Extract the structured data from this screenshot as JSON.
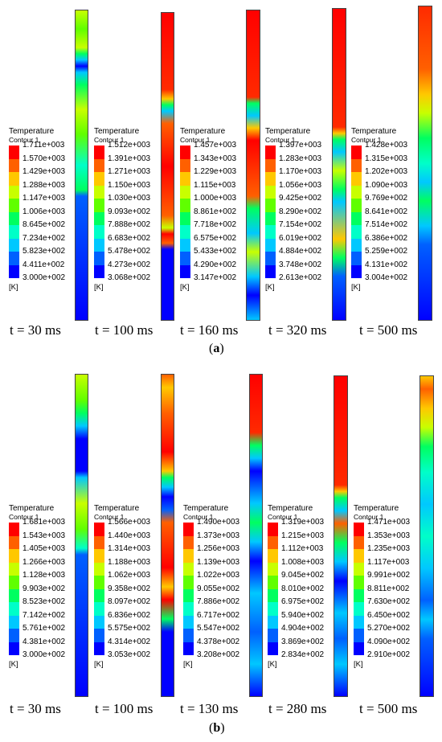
{
  "legend_title": "Temperature",
  "legend_subtitle": "Contour 1",
  "unit": "[K]",
  "colors": [
    "#0000ff",
    "#0060ff",
    "#00c8ff",
    "#00ffc8",
    "#00ff60",
    "#60ff00",
    "#c8ff00",
    "#ffc800",
    "#ff6000",
    "#ff0000"
  ],
  "panels": [
    {
      "label": "a",
      "caption_open": "(",
      "caption_close": ")",
      "columns": [
        {
          "time": "t = 30 ms",
          "values": [
            "1.711e+003",
            "1.570e+003",
            "1.429e+003",
            "1.288e+003",
            "1.147e+003",
            "1.006e+003",
            "8.645e+002",
            "7.234e+002",
            "5.823e+002",
            "4.411e+002",
            "3.000e+002"
          ]
        },
        {
          "time": "t = 100 ms",
          "values": [
            "1.512e+003",
            "1.391e+003",
            "1.271e+003",
            "1.150e+003",
            "1.030e+003",
            "9.093e+002",
            "7.888e+002",
            "6.683e+002",
            "5.478e+002",
            "4.273e+002",
            "3.068e+002"
          ]
        },
        {
          "time": "t = 160 ms",
          "values": [
            "1.457e+003",
            "1.343e+003",
            "1.229e+003",
            "1.115e+003",
            "1.000e+003",
            "8.861e+002",
            "7.718e+002",
            "6.575e+002",
            "5.433e+002",
            "4.290e+002",
            "3.147e+002"
          ]
        },
        {
          "time": "t = 320 ms",
          "values": [
            "1.397e+003",
            "1.283e+003",
            "1.170e+003",
            "1.056e+003",
            "9.425e+002",
            "8.290e+002",
            "7.154e+002",
            "6.019e+002",
            "4.884e+002",
            "3.748e+002",
            "2.613e+002"
          ]
        },
        {
          "time": "t = 500 ms",
          "values": [
            "1.428e+003",
            "1.315e+003",
            "1.202e+003",
            "1.090e+003",
            "9.769e+002",
            "8.641e+002",
            "7.514e+002",
            "6.386e+002",
            "5.259e+002",
            "4.131e+002",
            "3.004e+002"
          ]
        }
      ]
    },
    {
      "label": "b",
      "caption_open": "(",
      "caption_close": ")",
      "columns": [
        {
          "time": "t = 30 ms",
          "values": [
            "1.681e+003",
            "1.543e+003",
            "1.405e+003",
            "1.266e+003",
            "1.128e+003",
            "9.903e+002",
            "8.523e+002",
            "7.142e+002",
            "5.761e+002",
            "4.381e+002",
            "3.000e+002"
          ]
        },
        {
          "time": "t = 100 ms",
          "values": [
            "1.566e+003",
            "1.440e+003",
            "1.314e+003",
            "1.188e+003",
            "1.062e+003",
            "9.358e+002",
            "8.097e+002",
            "6.836e+002",
            "5.575e+002",
            "4.314e+002",
            "3.053e+002"
          ]
        },
        {
          "time": "t = 130 ms",
          "values": [
            "1.490e+003",
            "1.373e+003",
            "1.256e+003",
            "1.139e+003",
            "1.022e+003",
            "9.055e+002",
            "7.886e+002",
            "6.717e+002",
            "5.547e+002",
            "4.378e+002",
            "3.208e+002"
          ]
        },
        {
          "time": "t = 280 ms",
          "values": [
            "1.319e+003",
            "1.215e+003",
            "1.112e+003",
            "1.008e+003",
            "9.045e+002",
            "8.010e+002",
            "6.975e+002",
            "5.940e+002",
            "4.904e+002",
            "3.869e+002",
            "2.834e+002"
          ]
        },
        {
          "time": "t = 500 ms",
          "values": [
            "1.471e+003",
            "1.353e+003",
            "1.235e+003",
            "1.117e+003",
            "9.991e+002",
            "8.811e+002",
            "7.630e+002",
            "6.450e+002",
            "5.270e+002",
            "4.090e+002",
            "2.910e+002"
          ]
        }
      ]
    }
  ]
}
